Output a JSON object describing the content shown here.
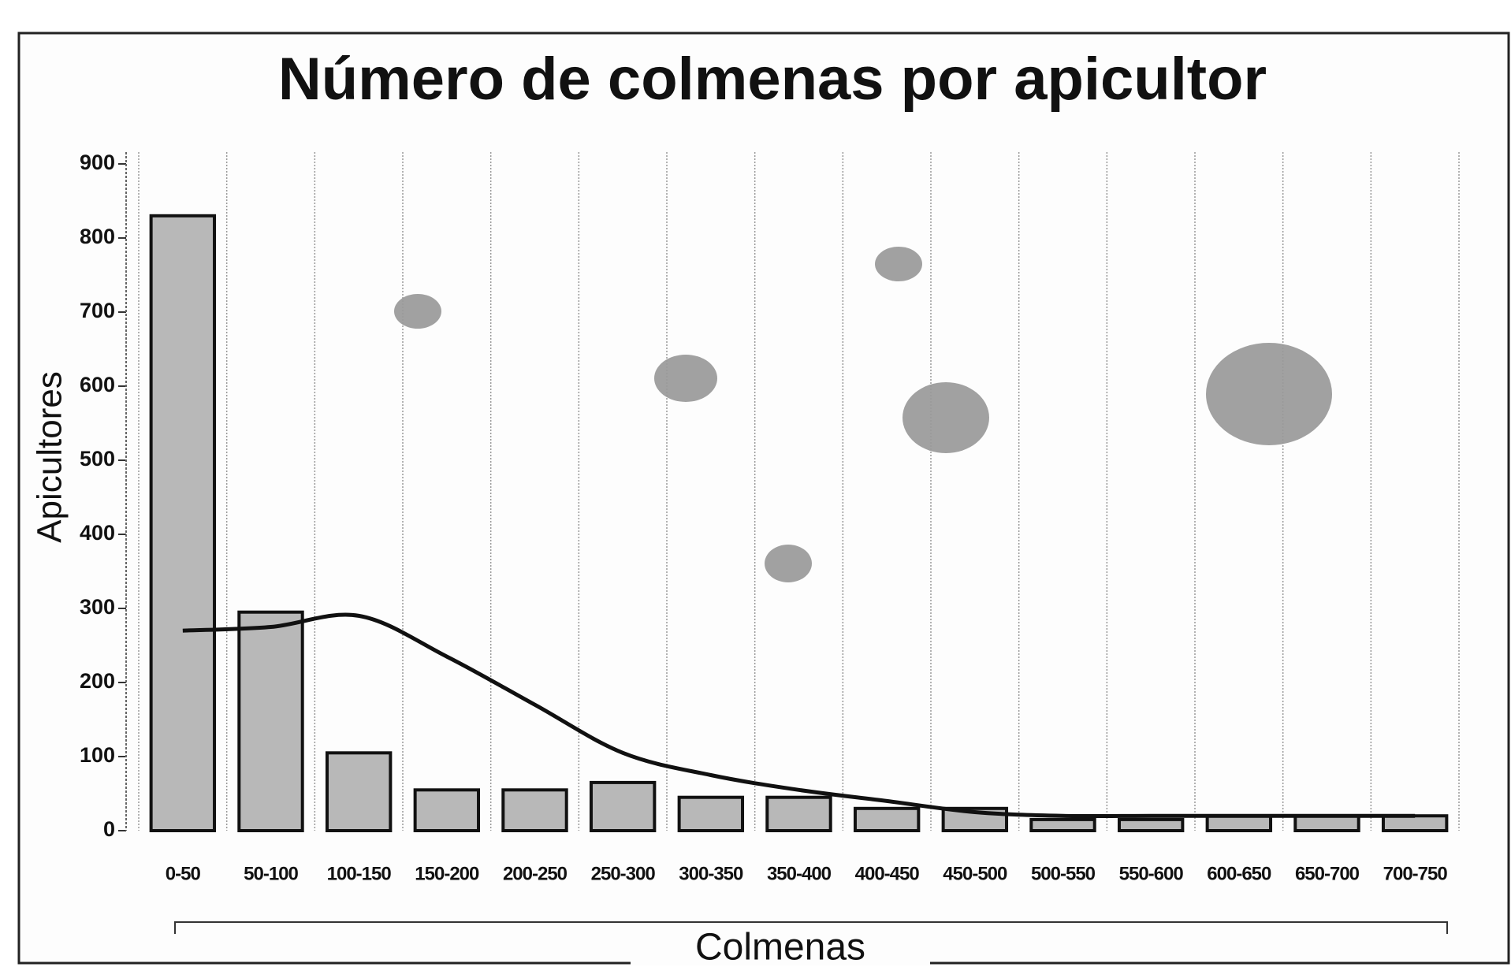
{
  "chart_data": {
    "type": "bar",
    "title": "Número de colmenas por apicultor",
    "y_label": "Apicultores",
    "x_label": "Colmenas",
    "categories": [
      "0-50",
      "50-100",
      "100-150",
      "150-200",
      "200-250",
      "250-300",
      "300-350",
      "350-400",
      "400-450",
      "450-500",
      "500-550",
      "550-600",
      "600-650",
      "650-700",
      "700-750"
    ],
    "series": [
      {
        "type": "bar",
        "color": "#b8b8b8",
        "values": [
          830,
          295,
          105,
          55,
          55,
          65,
          45,
          45,
          30,
          30,
          15,
          15,
          20,
          20,
          20
        ]
      },
      {
        "type": "line",
        "color": "#111111",
        "values": [
          270,
          275,
          290,
          235,
          170,
          105,
          75,
          55,
          40,
          25,
          20,
          20,
          20,
          20,
          20
        ]
      }
    ],
    "ylim": [
      0,
      900
    ],
    "yticks": [
      0,
      100,
      200,
      300,
      400,
      500,
      600,
      700,
      800,
      900
    ],
    "grid": true
  }
}
